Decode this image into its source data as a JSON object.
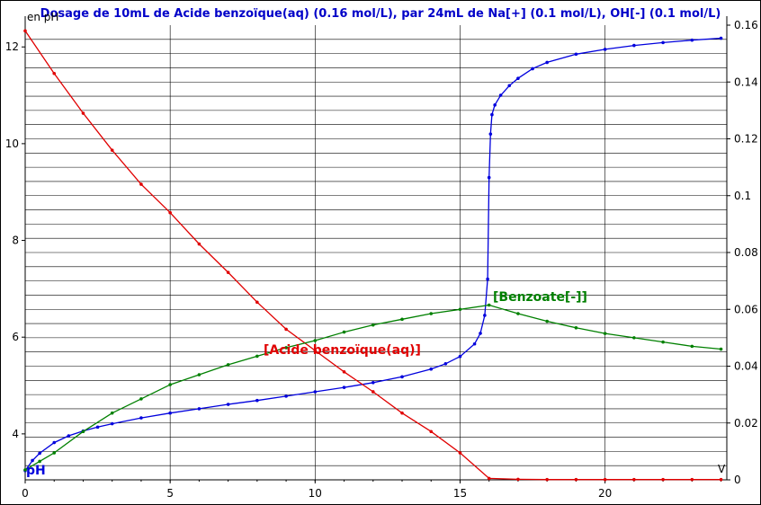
{
  "chart_data": {
    "type": "line",
    "title": "Dosage de 10mL de Acide benzoïque(aq) (0.16 mol/L),  par 24mL  de Na[+] (0.1 mol/L), OH[-] (0.1 mol/L)",
    "ylabel_left": "en pH",
    "xlabel": "V",
    "xlim": [
      0,
      24.2
    ],
    "ylim_left": [
      3.05,
      12.45
    ],
    "ylim_right": [
      0,
      0.16
    ],
    "x_ticks": [
      0,
      5,
      10,
      15,
      20
    ],
    "y_ticks_left": [
      4,
      6,
      8,
      10,
      12
    ],
    "y_ticks_right": [
      0,
      0.02,
      0.04,
      0.06,
      0.08,
      0.1,
      0.12,
      0.14,
      0.16
    ],
    "grid": true,
    "colors": {
      "pH": "#0000dd",
      "acid": "#e00000",
      "benzoate": "#008000",
      "title": "#0000c8"
    },
    "series": [
      {
        "name": "pH",
        "axis": "left",
        "x": [
          0,
          0.25,
          0.5,
          1,
          1.5,
          2,
          2.5,
          3,
          4,
          5,
          6,
          7,
          8,
          9,
          10,
          11,
          12,
          13,
          14,
          14.5,
          15,
          15.5,
          15.7,
          15.85,
          15.95,
          16.0,
          16.05,
          16.1,
          16.2,
          16.4,
          16.7,
          17,
          17.5,
          18,
          19,
          20,
          21,
          22,
          23,
          24
        ],
        "values": [
          3.24,
          3.45,
          3.6,
          3.82,
          3.96,
          4.06,
          4.14,
          4.21,
          4.33,
          4.43,
          4.52,
          4.61,
          4.69,
          4.78,
          4.87,
          4.96,
          5.06,
          5.18,
          5.34,
          5.45,
          5.6,
          5.86,
          6.08,
          6.45,
          7.2,
          9.3,
          10.2,
          10.6,
          10.8,
          11.0,
          11.2,
          11.35,
          11.55,
          11.68,
          11.85,
          11.95,
          12.03,
          12.09,
          12.14,
          12.18
        ]
      },
      {
        "name": "[Acide benzoïque(aq)]",
        "axis": "right",
        "x": [
          0,
          1,
          2,
          3,
          4,
          5,
          6,
          7,
          8,
          9,
          10,
          11,
          12,
          13,
          14,
          15,
          16,
          17,
          18,
          19,
          20,
          21,
          22,
          23,
          24
        ],
        "values": [
          0.158,
          0.143,
          0.129,
          0.116,
          0.104,
          0.094,
          0.083,
          0.073,
          0.0625,
          0.053,
          0.0455,
          0.038,
          0.031,
          0.0235,
          0.017,
          0.0095,
          0.0005,
          0.0002,
          0.0001,
          0.0001,
          0.0001,
          0.0001,
          0.0001,
          0.0001,
          0.0001
        ]
      },
      {
        "name": "[Benzoate[-]]",
        "axis": "right",
        "x": [
          0,
          0.5,
          1,
          2,
          3,
          4,
          5,
          6,
          7,
          8,
          9,
          10,
          11,
          12,
          13,
          14,
          15,
          16,
          17,
          18,
          19,
          20,
          21,
          22,
          23,
          24
        ],
        "values": [
          0.0035,
          0.0065,
          0.0095,
          0.017,
          0.0235,
          0.0285,
          0.0335,
          0.037,
          0.0405,
          0.0435,
          0.0465,
          0.049,
          0.052,
          0.0545,
          0.0565,
          0.0585,
          0.06,
          0.0615,
          0.0585,
          0.0558,
          0.0535,
          0.0515,
          0.05,
          0.0485,
          0.047,
          0.046
        ]
      }
    ],
    "labels": {
      "pH": "pH",
      "acid": "[Acide benzoïque(aq)]",
      "benzoate": "[Benzoate[-]]"
    }
  }
}
